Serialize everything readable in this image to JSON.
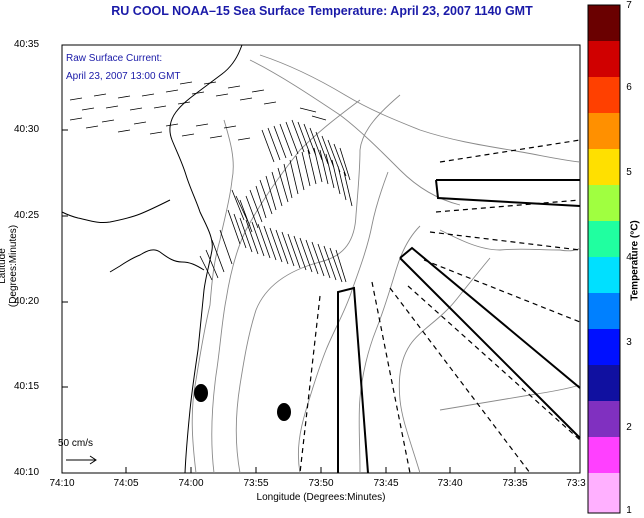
{
  "title": "RU COOL  NOAA–15  Sea Surface Temperature:  April 23, 2007 1140 GMT",
  "axes": {
    "xlabel": "Longitude (Degrees:Minutes)",
    "ylabel": "Latitude (Degrees:Minutes)",
    "x_ticks": [
      "74:10",
      "74:05",
      "74:00",
      "73:55",
      "73:50",
      "73:45",
      "73:40",
      "73:35",
      "73:3"
    ],
    "y_ticks": [
      "40:35",
      "40:30",
      "40:25",
      "40:20",
      "40:15",
      "40:10"
    ]
  },
  "legend": {
    "line1": "Raw Surface Current:",
    "line2": "April 23, 2007 13:00 GMT",
    "scale_label": "50 cm/s"
  },
  "colorbar": {
    "label": "Temperature (°C)",
    "min": 1,
    "max": 7,
    "ticks": [
      "7",
      "6",
      "5",
      "4",
      "3",
      "2",
      "1"
    ],
    "colors": [
      "#6a0000",
      "#d00000",
      "#ff4000",
      "#ff9000",
      "#ffe000",
      "#a0ff40",
      "#20ffa0",
      "#00e0ff",
      "#0080ff",
      "#0010ff",
      "#1010a0",
      "#8030c0",
      "#ff40ff",
      "#ffb0ff"
    ]
  },
  "colors": {
    "title": "#1a1aa8",
    "coastline": "#000000",
    "bathymetry": "#8a8a8a"
  }
}
